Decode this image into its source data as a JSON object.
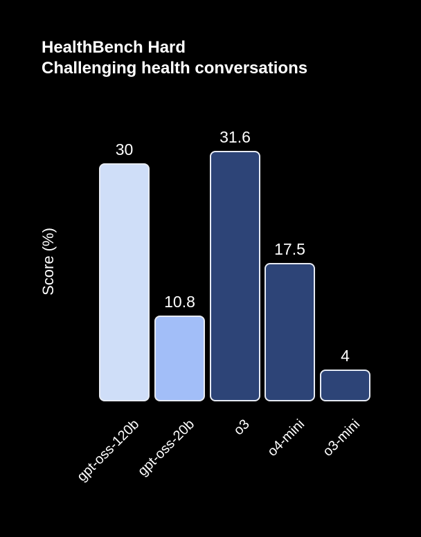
{
  "page": {
    "background": "#000000",
    "text_color": "#ffffff"
  },
  "chart_data": {
    "type": "bar",
    "title": "HealthBench Hard",
    "subtitle": "Challenging health conversations",
    "xlabel": "",
    "ylabel": "Score (%)",
    "categories": [
      "gpt-oss-120b",
      "gpt-oss-20b",
      "o3",
      "o4-mini",
      "o3-mini"
    ],
    "values": [
      30,
      10.8,
      31.6,
      17.5,
      4
    ],
    "value_labels": [
      "30",
      "10.8",
      "31.6",
      "17.5",
      "4"
    ],
    "ylim": [
      0,
      34
    ],
    "grid": false,
    "legend": false,
    "background": "#000000",
    "bar_colors": [
      "#cfdef8",
      "#a2bef8",
      "#2d4477",
      "#2d4477",
      "#2d4477"
    ],
    "bar_border_color": "#e7ebf3",
    "label_color": "#ffffff",
    "x_tick_rotation_deg": 45
  }
}
